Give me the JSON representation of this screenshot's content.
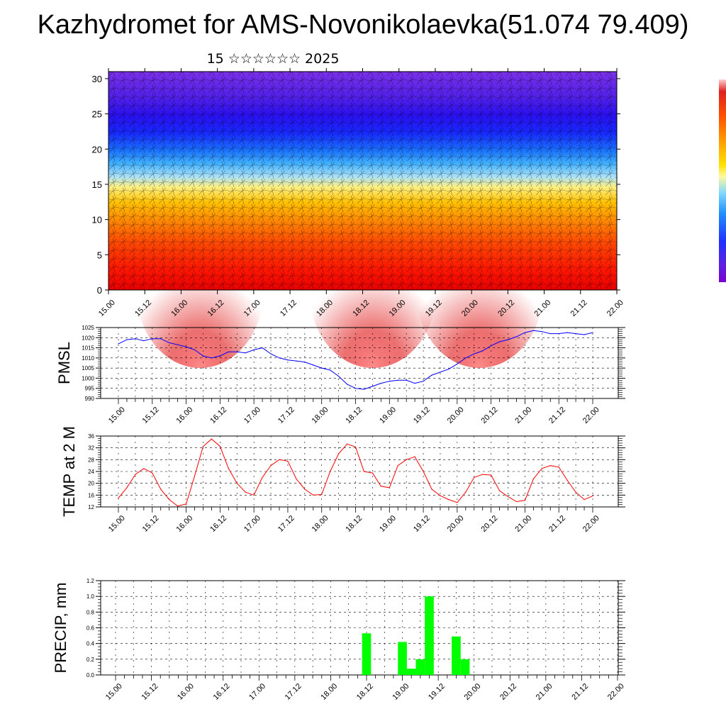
{
  "header": {
    "title": "Kazhydromet for AMS-Novonikolaevka(51.074 79.409)",
    "subtitle": "15 ☆☆☆☆☆☆ 2025"
  },
  "colors": {
    "pmsl_line": "#0000ff",
    "temp_line": "#ff0000",
    "precip_bar": "#00ff00",
    "hot": "#ff2000",
    "cold": "#4020ff"
  },
  "chart_data": [
    {
      "type": "heatmap",
      "title": "",
      "ylim": [
        0,
        31
      ],
      "yticks": [
        0,
        5,
        10,
        15,
        20,
        25,
        30
      ],
      "xticks": [
        "15.00",
        "15.12",
        "16.00",
        "16.12",
        "17.00",
        "17.12",
        "18.00",
        "18.12",
        "19.00",
        "19.12",
        "20.00",
        "20.12",
        "21.00",
        "21.12",
        "22.00"
      ],
      "description_levels": "warm colors near surface (red), yellow near 15, blue/purple above 20"
    },
    {
      "type": "line",
      "ylabel": "PMSL",
      "ylim": [
        990,
        1025
      ],
      "yticks": [
        990,
        995,
        1000,
        1005,
        1010,
        1015,
        1020,
        1025
      ],
      "xticks": [
        "15.00",
        "15.12",
        "16.00",
        "16.12",
        "17.00",
        "17.12",
        "18.00",
        "18.12",
        "19.00",
        "19.12",
        "20.00",
        "20.12",
        "21.00",
        "21.12",
        "22.00"
      ],
      "x": [
        0,
        3,
        6,
        9,
        12,
        15,
        18,
        21,
        24,
        27,
        30,
        33,
        36,
        39,
        42,
        45,
        48,
        51,
        54,
        57,
        60,
        63,
        66,
        69,
        72,
        75,
        78,
        81,
        84,
        87,
        90,
        93,
        96,
        99,
        102,
        105,
        108,
        111,
        114,
        117,
        120,
        123,
        126,
        129,
        132,
        135,
        138,
        141,
        144,
        147,
        150,
        153,
        156,
        159,
        162,
        165,
        168
      ],
      "series": [
        {
          "values": [
            1017,
            1019,
            1019.5,
            1018.5,
            1019.5,
            1019.5,
            1017.5,
            1016.5,
            1015.5,
            1014,
            1011,
            1010,
            1011,
            1013,
            1013,
            1012.5,
            1014,
            1015,
            1012,
            1010,
            1009,
            1008.5,
            1008,
            1006.5,
            1005,
            1004,
            1001,
            997,
            995,
            994.5,
            996,
            997.5,
            998.5,
            999,
            999,
            997.5,
            998.5,
            1001.5,
            1003,
            1004.5,
            1007,
            1010,
            1012,
            1013.5,
            1016,
            1018,
            1019,
            1020.5,
            1022.5,
            1023.5,
            1023,
            1022,
            1022,
            1022.5,
            1022,
            1021.5,
            1022.5
          ]
        }
      ]
    },
    {
      "type": "line",
      "ylabel": "TEMP at 2 M",
      "ylim": [
        12,
        36
      ],
      "yticks": [
        12,
        16,
        20,
        24,
        28,
        32,
        36
      ],
      "xticks": [
        "15.00",
        "15.12",
        "16.00",
        "16.12",
        "17.00",
        "17.12",
        "18.00",
        "18.12",
        "19.00",
        "19.12",
        "20.00",
        "20.12",
        "21.00",
        "21.12",
        "22.00"
      ],
      "x": [
        0,
        3,
        6,
        9,
        12,
        15,
        18,
        21,
        24,
        27,
        30,
        33,
        36,
        39,
        42,
        45,
        48,
        51,
        54,
        57,
        60,
        63,
        66,
        69,
        72,
        75,
        78,
        81,
        84,
        87,
        90,
        93,
        96,
        99,
        102,
        105,
        108,
        111,
        114,
        117,
        120,
        123,
        126,
        129,
        132,
        135,
        138,
        141,
        144,
        147,
        150,
        153,
        156,
        159,
        162,
        165,
        168
      ],
      "series": [
        {
          "values": [
            15,
            18.5,
            23,
            25,
            23.5,
            18,
            14.5,
            12.3,
            13,
            22.5,
            32.5,
            35,
            32.5,
            25,
            20,
            17,
            16,
            22,
            26,
            28,
            27.5,
            21.5,
            18,
            16,
            16.2,
            24,
            30,
            33.3,
            32.3,
            24,
            23.5,
            19,
            18.5,
            26,
            28,
            29,
            24,
            18,
            15.8,
            14.5,
            13.5,
            17,
            22,
            23,
            22.8,
            17.5,
            15.5,
            13.8,
            14.2,
            21.5,
            25,
            26,
            25.5,
            21,
            17,
            14.5,
            15.7
          ]
        }
      ]
    },
    {
      "type": "bar",
      "ylabel": "PRECIP, mm",
      "ylim": [
        0,
        1.2
      ],
      "yticks": [
        "0.0",
        "0.2",
        "0.4",
        "0.6",
        "0.8",
        "1.0",
        "1.2"
      ],
      "xticks": [
        "15.00",
        "15.12",
        "16.00",
        "16.12",
        "17.00",
        "17.12",
        "18.00",
        "18.12",
        "19.00",
        "19.12",
        "20.00",
        "20.12",
        "21.00",
        "21.12",
        "22.00"
      ],
      "x": [
        84,
        96,
        99,
        102,
        105,
        114,
        117
      ],
      "values": [
        0.53,
        0.42,
        0.08,
        0.2,
        1.0,
        0.49,
        0.2
      ]
    }
  ]
}
